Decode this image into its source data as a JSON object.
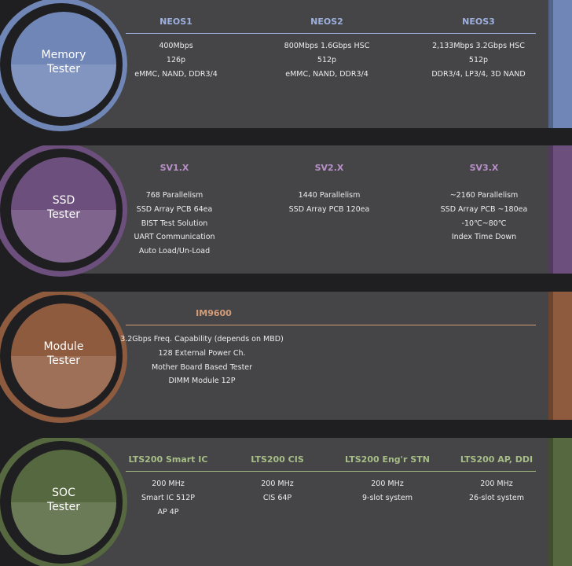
{
  "sections": [
    {
      "title_line1": "Memory",
      "title_line2": "Tester",
      "color": "#6f86b7",
      "head_color": "#9db0dd",
      "columns": [
        {
          "header": "NEOS1",
          "lines": [
            "400Mbps",
            "126p",
            "eMMC, NAND, DDR3/4"
          ]
        },
        {
          "header": "NEOS2",
          "lines": [
            "800Mbps 1.6Gbps HSC",
            "512p",
            "eMMC, NAND, DDR3/4"
          ]
        },
        {
          "header": "NEOS3",
          "lines": [
            "2,133Mbps 3.2Gbps HSC",
            "512p",
            "DDR3/4, LP3/4, 3D NAND"
          ]
        }
      ]
    },
    {
      "title_line1": "SSD",
      "title_line2": "Tester",
      "color": "#6c4f7d",
      "head_color": "#b88fc8",
      "columns": [
        {
          "header": "SV1.X",
          "lines": [
            "768 Parallelism",
            "SSD Array PCB 64ea",
            "BIST Test Solution",
            "UART Communication",
            "Auto Load/Un-Load"
          ]
        },
        {
          "header": "SV2.X",
          "lines": [
            "1440 Parallelism",
            "SSD Array PCB 120ea"
          ]
        },
        {
          "header": "SV3.X",
          "lines": [
            "~2160 Parallelism",
            "SSD Array PCB ~180ea",
            "-10℃~80℃",
            "Index Time Down"
          ]
        }
      ]
    },
    {
      "title_line1": "Module",
      "title_line2": "Tester",
      "color": "#8f5b3f",
      "head_color": "#d39c78",
      "columns": [
        {
          "header": "IM9600",
          "lines": [
            "3.2Gbps Freq. Capability (depends on MBD)",
            "128 External Power Ch.",
            "Mother Board Based Tester",
            "DIMM Module 12P"
          ]
        }
      ]
    },
    {
      "title_line1": "SOC",
      "title_line2": "Tester",
      "color": "#56683f",
      "head_color": "#a7bd86",
      "columns": [
        {
          "header": "LTS200 Smart IC",
          "lines": [
            "200 MHz",
            "Smart IC 512P",
            "AP 4P"
          ]
        },
        {
          "header": "LTS200 CIS",
          "lines": [
            "200 MHz",
            "CIS 64P"
          ]
        },
        {
          "header": "LTS200 Eng'r STN",
          "lines": [
            "200 MHz",
            "9-slot system"
          ]
        },
        {
          "header": "LTS200 AP, DDI",
          "lines": [
            "200 MHz",
            "26-slot system"
          ]
        }
      ]
    }
  ]
}
